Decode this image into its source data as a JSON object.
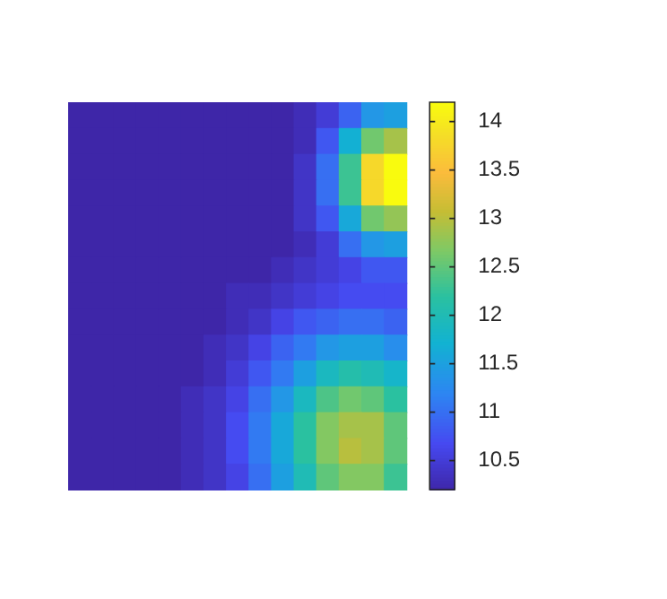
{
  "chart_data": {
    "type": "heatmap",
    "categories": [
      null,
      null,
      null,
      null,
      null,
      null,
      null,
      null,
      null,
      null,
      null,
      null,
      null,
      null,
      null
    ],
    "y_categories": [
      null,
      null,
      null,
      null,
      null,
      null,
      null,
      null,
      null,
      null,
      null,
      null,
      null,
      null,
      null
    ],
    "cells": [
      [
        10.2,
        10.2,
        10.2,
        10.2,
        10.2,
        10.2,
        10.2,
        10.2,
        10.2,
        10.2,
        10.3,
        10.5,
        10.9,
        11.4,
        11.5
      ],
      [
        10.2,
        10.2,
        10.2,
        10.2,
        10.2,
        10.2,
        10.2,
        10.2,
        10.2,
        10.2,
        10.3,
        10.8,
        11.7,
        12.6,
        12.9
      ],
      [
        10.2,
        10.2,
        10.2,
        10.2,
        10.2,
        10.2,
        10.2,
        10.2,
        10.2,
        10.2,
        10.4,
        11.0,
        12.3,
        13.8,
        14.2
      ],
      [
        10.2,
        10.2,
        10.2,
        10.2,
        10.2,
        10.2,
        10.2,
        10.2,
        10.2,
        10.2,
        10.4,
        11.0,
        12.3,
        13.8,
        14.2
      ],
      [
        10.2,
        10.2,
        10.2,
        10.2,
        10.2,
        10.2,
        10.2,
        10.2,
        10.2,
        10.2,
        10.4,
        10.8,
        11.6,
        12.6,
        12.8
      ],
      [
        10.2,
        10.2,
        10.2,
        10.2,
        10.2,
        10.2,
        10.2,
        10.2,
        10.2,
        10.2,
        10.3,
        10.5,
        11.0,
        11.4,
        11.5
      ],
      [
        10.2,
        10.2,
        10.2,
        10.2,
        10.2,
        10.2,
        10.2,
        10.2,
        10.2,
        10.3,
        10.4,
        10.5,
        10.6,
        10.8,
        10.8
      ],
      [
        10.2,
        10.2,
        10.2,
        10.2,
        10.2,
        10.2,
        10.2,
        10.3,
        10.3,
        10.4,
        10.5,
        10.6,
        10.7,
        10.7,
        10.7
      ],
      [
        10.2,
        10.2,
        10.2,
        10.2,
        10.2,
        10.2,
        10.2,
        10.3,
        10.4,
        10.6,
        10.8,
        10.9,
        11.0,
        11.0,
        10.9
      ],
      [
        10.2,
        10.2,
        10.2,
        10.2,
        10.2,
        10.2,
        10.3,
        10.4,
        10.6,
        10.9,
        11.1,
        11.4,
        11.5,
        11.5,
        11.3
      ],
      [
        10.2,
        10.2,
        10.2,
        10.2,
        10.2,
        10.2,
        10.3,
        10.5,
        10.8,
        11.1,
        11.5,
        11.9,
        12.1,
        12.0,
        11.8
      ],
      [
        10.2,
        10.2,
        10.2,
        10.2,
        10.2,
        10.3,
        10.4,
        10.6,
        11.0,
        11.4,
        11.9,
        12.4,
        12.6,
        12.5,
        12.2
      ],
      [
        10.2,
        10.2,
        10.2,
        10.2,
        10.2,
        10.3,
        10.4,
        10.7,
        11.1,
        11.6,
        12.2,
        12.7,
        12.9,
        12.9,
        12.5
      ],
      [
        10.2,
        10.2,
        10.2,
        10.2,
        10.2,
        10.3,
        10.4,
        10.7,
        11.1,
        11.6,
        12.2,
        12.7,
        13.0,
        12.9,
        12.5
      ],
      [
        10.2,
        10.2,
        10.2,
        10.2,
        10.2,
        10.3,
        10.4,
        10.6,
        11.0,
        11.5,
        12.0,
        12.5,
        12.7,
        12.7,
        12.3
      ]
    ],
    "clim": [
      10.2,
      14.2
    ],
    "cticks": [
      10.5,
      11,
      11.5,
      12,
      12.5,
      13,
      13.5,
      14
    ],
    "tick_labels": false
  }
}
